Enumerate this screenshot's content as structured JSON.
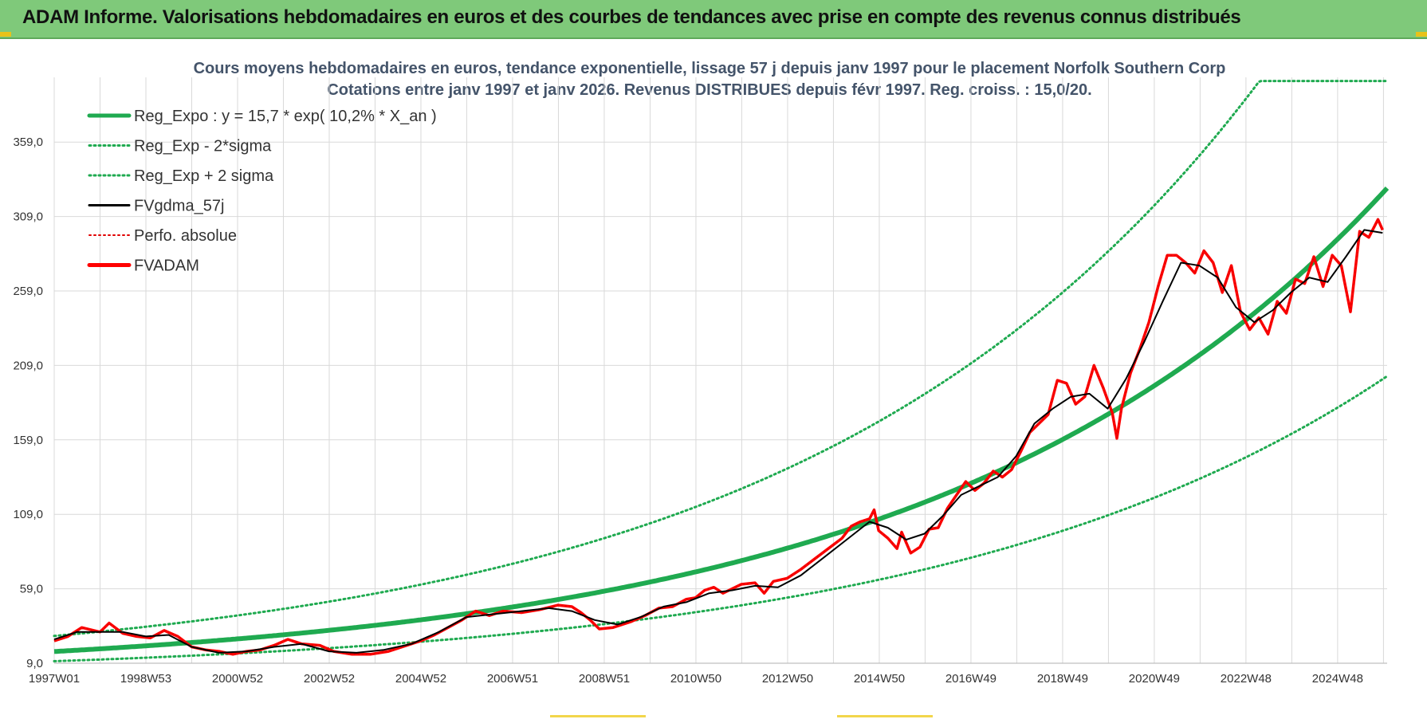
{
  "header": {
    "title": "ADAM Informe. Valorisations hebdomadaires en euros et des courbes de tendances avec prise en compte des revenus connus distribués"
  },
  "colors": {
    "header_bg": "#7fc97a",
    "trend": "#1faa50",
    "band": "#1faa50",
    "smooth": "#000000",
    "perf": "#e00000",
    "fvadam": "#ff0000",
    "grid": "#d9d9d9"
  },
  "chart_data": {
    "type": "line",
    "title_line1": "Cours moyens hebdomadaires en euros, tendance exponentielle, lissage 57 j depuis janv 1997 pour le placement Norfolk Southern Corp",
    "title_line2": "Cotations entre janv 1997 et janv 2026. Revenus DISTRIBUES depuis févr 1997. Reg. croiss. : 15,0/20.",
    "x_tick_labels": [
      "1997W01",
      "1998W53",
      "2000W52",
      "2002W52",
      "2004W52",
      "2006W51",
      "2008W51",
      "2010W50",
      "2012W50",
      "2014W50",
      "2016W49",
      "2018W49",
      "2020W49",
      "2022W48",
      "2024W48"
    ],
    "y_tick_labels": [
      "9,0",
      "59,0",
      "109,0",
      "159,0",
      "209,0",
      "259,0",
      "309,0",
      "359,0"
    ],
    "ylim": [
      9,
      400
    ],
    "xlim": [
      1997.0,
      2026.1
    ],
    "grid": true,
    "legend_position": "top-left",
    "legend": [
      {
        "name": "Reg_Expo : y = 15,7 * exp( 10,2% *  X_an )",
        "style": "thick-solid",
        "color": "#1faa50"
      },
      {
        "name": "Reg_Exp - 2*sigma",
        "style": "dotted",
        "color": "#1faa50"
      },
      {
        "name": "Reg_Exp + 2 sigma",
        "style": "dotted",
        "color": "#1faa50"
      },
      {
        "name": "FVgdma_57j",
        "style": "solid",
        "color": "#000000"
      },
      {
        "name": "Perfo. absolue",
        "style": "dotted",
        "color": "#e00000"
      },
      {
        "name": "FVADAM",
        "style": "thick-solid",
        "color": "#ff0000"
      }
    ],
    "regression": {
      "a": 15.7,
      "rate": 0.102,
      "lower_factor": 0.615,
      "upper_factor": 1.62,
      "upper_cap": 400
    },
    "series": [
      {
        "name": "FVADAM",
        "x": [
          1997.0,
          1997.3,
          1997.6,
          1998.0,
          1998.2,
          1998.5,
          1998.8,
          1999.1,
          1999.4,
          1999.7,
          2000.0,
          2000.3,
          2000.6,
          2000.9,
          2001.2,
          2001.5,
          2001.8,
          2002.1,
          2002.4,
          2002.8,
          2003.1,
          2003.5,
          2003.9,
          2004.3,
          2004.7,
          2005.0,
          2005.3,
          2005.6,
          2005.9,
          2006.2,
          2006.5,
          2006.8,
          2007.2,
          2007.6,
          2008.0,
          2008.3,
          2008.5,
          2008.7,
          2008.9,
          2009.2,
          2009.6,
          2009.9,
          2010.2,
          2010.5,
          2010.8,
          2011.0,
          2011.2,
          2011.4,
          2011.6,
          2011.8,
          2012.0,
          2012.3,
          2012.5,
          2012.7,
          2013.0,
          2013.3,
          2013.6,
          2013.9,
          2014.2,
          2014.4,
          2014.6,
          2014.8,
          2014.9,
          2015.0,
          2015.2,
          2015.4,
          2015.5,
          2015.7,
          2015.9,
          2016.1,
          2016.3,
          2016.5,
          2016.7,
          2016.9,
          2017.1,
          2017.3,
          2017.5,
          2017.7,
          2017.9,
          2018.1,
          2018.3,
          2018.5,
          2018.7,
          2018.9,
          2019.1,
          2019.3,
          2019.5,
          2019.7,
          2019.9,
          2020.1,
          2020.2,
          2020.3,
          2020.5,
          2020.7,
          2020.9,
          2021.1,
          2021.3,
          2021.5,
          2021.7,
          2021.9,
          2022.1,
          2022.3,
          2022.5,
          2022.7,
          2022.9,
          2023.1,
          2023.3,
          2023.5,
          2023.7,
          2023.9,
          2024.1,
          2024.3,
          2024.5,
          2024.7,
          2024.9,
          2025.1,
          2025.3,
          2025.5,
          2025.7,
          2025.9,
          2026.0
        ],
        "values": [
          24,
          27,
          33,
          30,
          36,
          29,
          27,
          26,
          31,
          27,
          20,
          18,
          17,
          15,
          17,
          18,
          21,
          25,
          22,
          21,
          17,
          15,
          15,
          17,
          21,
          24,
          28,
          33,
          38,
          44,
          41,
          44,
          43,
          45,
          48,
          47,
          43,
          38,
          32,
          33,
          37,
          41,
          46,
          47,
          52,
          53,
          58,
          60,
          56,
          59,
          62,
          63,
          56,
          64,
          66,
          72,
          79,
          86,
          93,
          101,
          104,
          106,
          112,
          98,
          93,
          86,
          97,
          83,
          87,
          99,
          100,
          113,
          122,
          131,
          125,
          130,
          138,
          134,
          139,
          151,
          164,
          170,
          176,
          199,
          197,
          183,
          188,
          209,
          194,
          177,
          160,
          180,
          204,
          220,
          238,
          262,
          283,
          283,
          278,
          271,
          286,
          278,
          258,
          276,
          245,
          233,
          241,
          230,
          252,
          244,
          267,
          264,
          282,
          262,
          283,
          276,
          245,
          299,
          295,
          307,
          300
        ]
      },
      {
        "name": "FVgdma_57j",
        "x": [
          1997.0,
          1997.5,
          1998.0,
          1998.5,
          1999.0,
          1999.5,
          2000.0,
          2000.6,
          2001.2,
          2001.8,
          2002.4,
          2003.0,
          2003.6,
          2004.2,
          2004.8,
          2005.4,
          2006.0,
          2006.6,
          2007.2,
          2007.8,
          2008.3,
          2008.8,
          2009.3,
          2009.8,
          2010.3,
          2010.8,
          2011.3,
          2011.8,
          2012.3,
          2012.8,
          2013.3,
          2013.8,
          2014.3,
          2014.8,
          2015.2,
          2015.6,
          2016.0,
          2016.4,
          2016.8,
          2017.2,
          2017.6,
          2018.0,
          2018.4,
          2018.8,
          2019.2,
          2019.6,
          2020.0,
          2020.4,
          2020.8,
          2021.2,
          2021.6,
          2022.0,
          2022.4,
          2022.8,
          2023.2,
          2023.6,
          2024.0,
          2024.4,
          2024.8,
          2025.2,
          2025.6,
          2026.0
        ],
        "values": [
          25,
          30,
          30,
          30,
          27,
          28,
          20,
          16,
          17,
          20,
          22,
          17,
          16,
          18,
          22,
          30,
          40,
          42,
          44,
          46,
          44,
          38,
          35,
          40,
          47,
          50,
          56,
          58,
          61,
          60,
          68,
          80,
          92,
          104,
          100,
          92,
          96,
          108,
          122,
          128,
          134,
          148,
          170,
          180,
          188,
          190,
          180,
          200,
          225,
          252,
          278,
          276,
          268,
          248,
          238,
          246,
          258,
          268,
          265,
          282,
          300,
          298
        ]
      }
    ]
  }
}
